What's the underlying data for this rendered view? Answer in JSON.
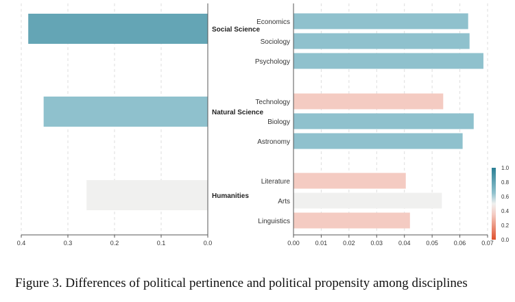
{
  "caption": "Figure 3. Differences of political pertinence and political propensity among disciplines",
  "chart_data": [
    {
      "type": "bar",
      "orientation": "horizontal",
      "x_direction": "reversed",
      "categories": [
        "Social Science",
        "Natural Science",
        "Humanities"
      ],
      "values": [
        0.385,
        0.352,
        0.26
      ],
      "color_values": [
        0.8,
        0.65,
        0.5
      ],
      "xlim": [
        0,
        0.4
      ],
      "xticks": [
        "0.4",
        "0.3",
        "0.2",
        "0.1",
        "0.0"
      ],
      "xtick_values": [
        0.4,
        0.3,
        0.2,
        0.1,
        0.0
      ],
      "grid": "vertical dashed"
    },
    {
      "type": "bar",
      "orientation": "horizontal",
      "groups": [
        {
          "name": "Social Science",
          "categories": [
            "Economics",
            "Sociology",
            "Psychology"
          ],
          "values": [
            0.063,
            0.0635,
            0.0685
          ],
          "color_values": [
            0.65,
            0.65,
            0.65
          ]
        },
        {
          "name": "Natural Science",
          "categories": [
            "Technology",
            "Biology",
            "Astronomy"
          ],
          "values": [
            0.054,
            0.065,
            0.061
          ],
          "color_values": [
            0.35,
            0.65,
            0.65
          ]
        },
        {
          "name": "Humanities",
          "categories": [
            "Literature",
            "Arts",
            "Linguistics"
          ],
          "values": [
            0.0405,
            0.0535,
            0.042
          ],
          "color_values": [
            0.35,
            0.5,
            0.35
          ]
        }
      ],
      "xlim": [
        0,
        0.07
      ],
      "xticks": [
        "0.00",
        "0.01",
        "0.02",
        "0.03",
        "0.04",
        "0.05",
        "0.06",
        "0.07"
      ],
      "xtick_values": [
        0,
        0.01,
        0.02,
        0.03,
        0.04,
        0.05,
        0.06,
        0.07
      ],
      "grid": "vertical dashed"
    }
  ],
  "colorbar": {
    "range": [
      0,
      1
    ],
    "ticks": [
      "1.0",
      "0.8",
      "0.6",
      "0.4",
      "0.2",
      "0.0"
    ],
    "tick_values": [
      1.0,
      0.8,
      0.6,
      0.4,
      0.2,
      0.0
    ],
    "colors": {
      "low": "#e0502d",
      "mid_low": "#f4cbc2",
      "mid": "#f0f0ef",
      "mid_high": "#8fc1cd",
      "high": "#2a7f94"
    }
  }
}
